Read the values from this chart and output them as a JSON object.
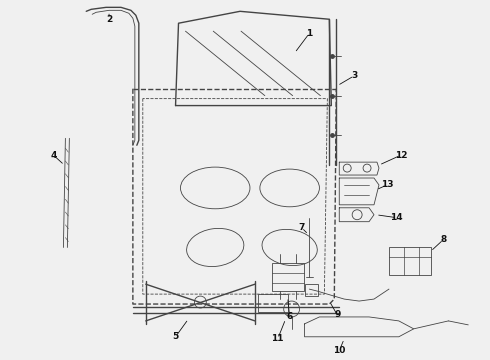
{
  "bg_color": "#f0f0f0",
  "line_color": "#444444",
  "label_color": "#111111",
  "fig_width": 4.9,
  "fig_height": 3.6,
  "dpi": 100
}
